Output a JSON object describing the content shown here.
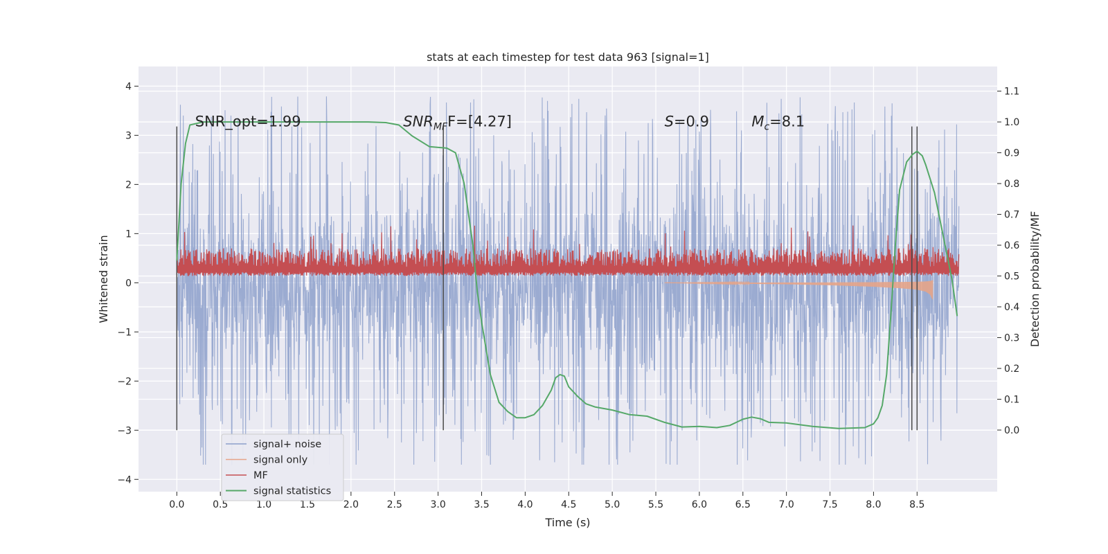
{
  "chart_data": {
    "type": "line",
    "title": "stats at each timestep for test data 963 [signal=1]",
    "xlabel": "Time (s)",
    "ylabel": "Whitened strain",
    "ylabel_right": "Detection probability/MF",
    "xlim": [
      -0.44,
      9.42
    ],
    "ylim": [
      -4.25,
      4.4
    ],
    "ylim_right": [
      -0.2,
      1.18
    ],
    "x_ticks": [
      0.0,
      0.5,
      1.0,
      1.5,
      2.0,
      2.5,
      3.0,
      3.5,
      4.0,
      4.5,
      5.0,
      5.5,
      6.0,
      6.5,
      7.0,
      7.5,
      8.0,
      8.5
    ],
    "x_tick_labels": [
      "0.0",
      "0.5",
      "1.0",
      "1.5",
      "2.0",
      "2.5",
      "3.0",
      "3.5",
      "4.0",
      "4.5",
      "5.0",
      "5.5",
      "6.0",
      "6.5",
      "7.0",
      "7.5",
      "8.0",
      "8.5"
    ],
    "y_ticks": [
      4,
      3,
      2,
      1,
      0,
      -1,
      -2,
      -3,
      -4
    ],
    "y_tick_labels": [
      "4",
      "3",
      "2",
      "1",
      "0",
      "−1",
      "−2",
      "−3",
      "−4"
    ],
    "y2_ticks": [
      1.1,
      1.0,
      0.9,
      0.8,
      0.7,
      0.6,
      0.5,
      0.4,
      0.3,
      0.2,
      0.1,
      0.0
    ],
    "y2_tick_labels": [
      "1.1",
      "1.0",
      "0.9",
      "0.8",
      "0.7",
      "0.6",
      "0.5",
      "0.4",
      "0.3",
      "0.2",
      "0.1",
      "0.0"
    ],
    "annotations": [
      {
        "text": "SNR_opt=1.99",
        "x": 0.21,
        "y": 3.18
      },
      {
        "text_main": "SNR",
        "text_sub": "MF",
        "text_rest": "F=[4.27]",
        "x": 2.6,
        "y": 3.18
      },
      {
        "text_main": "S",
        "text_sub": "",
        "text_rest": "=0.9",
        "x": 5.6,
        "y": 3.18
      },
      {
        "text_main": "M",
        "text_sub": "c",
        "text_rest": "=8.1",
        "x": 6.6,
        "y": 3.18
      }
    ],
    "vertical_lines_x": [
      0.0,
      3.06,
      8.44,
      8.5
    ],
    "vertical_lines_y": [
      -3.0,
      3.18
    ],
    "legend_position": "lower-left",
    "series": [
      {
        "name": "signal+ noise",
        "color": "#8da0cb",
        "axis": "left",
        "kind": "noise",
        "x_range": [
          0.0,
          8.98
        ],
        "amplitude": 1.3,
        "peak_min": -3.7,
        "peak_max": 4.05
      },
      {
        "name": "signal only",
        "color": "#e6a488",
        "axis": "left",
        "kind": "chirp",
        "x": [
          5.6,
          6.5,
          7.0,
          7.5,
          8.0,
          8.3,
          8.5,
          8.6,
          8.65,
          8.68
        ],
        "envelope": [
          0.0,
          0.02,
          0.03,
          0.05,
          0.08,
          0.11,
          0.14,
          0.18,
          0.24,
          0.35
        ]
      },
      {
        "name": "MF",
        "color": "#c44e52",
        "axis": "right",
        "kind": "band",
        "x_range": [
          0.0,
          8.98
        ],
        "base": 0.5,
        "typical_top": 0.56,
        "peak_max": 0.665
      },
      {
        "name": "signal statistics",
        "color": "#55a868",
        "axis": "right",
        "kind": "curve",
        "x": [
          0.0,
          0.05,
          0.1,
          0.15,
          0.3,
          0.5,
          1.0,
          1.5,
          2.0,
          2.2,
          2.4,
          2.55,
          2.7,
          2.9,
          3.1,
          3.2,
          3.3,
          3.4,
          3.45,
          3.5,
          3.6,
          3.7,
          3.8,
          3.9,
          4.0,
          4.1,
          4.2,
          4.3,
          4.35,
          4.4,
          4.45,
          4.5,
          4.6,
          4.7,
          4.8,
          5.0,
          5.2,
          5.4,
          5.6,
          5.8,
          6.0,
          6.2,
          6.35,
          6.5,
          6.6,
          6.7,
          6.8,
          7.0,
          7.3,
          7.6,
          7.9,
          8.0,
          8.05,
          8.1,
          8.15,
          8.2,
          8.25,
          8.3,
          8.38,
          8.45,
          8.5,
          8.56,
          8.6,
          8.7,
          8.8,
          8.9,
          8.96
        ],
        "y": [
          0.55,
          0.8,
          0.93,
          0.99,
          1.0,
          1.0,
          1.0,
          1.0,
          1.0,
          1.0,
          0.998,
          0.99,
          0.955,
          0.92,
          0.915,
          0.9,
          0.8,
          0.6,
          0.45,
          0.35,
          0.18,
          0.09,
          0.06,
          0.04,
          0.04,
          0.05,
          0.08,
          0.13,
          0.17,
          0.18,
          0.175,
          0.14,
          0.11,
          0.085,
          0.075,
          0.065,
          0.05,
          0.045,
          0.025,
          0.01,
          0.012,
          0.008,
          0.015,
          0.035,
          0.042,
          0.037,
          0.025,
          0.023,
          0.012,
          0.005,
          0.008,
          0.02,
          0.04,
          0.08,
          0.18,
          0.38,
          0.6,
          0.78,
          0.87,
          0.895,
          0.905,
          0.89,
          0.86,
          0.77,
          0.63,
          0.49,
          0.37
        ]
      }
    ]
  }
}
